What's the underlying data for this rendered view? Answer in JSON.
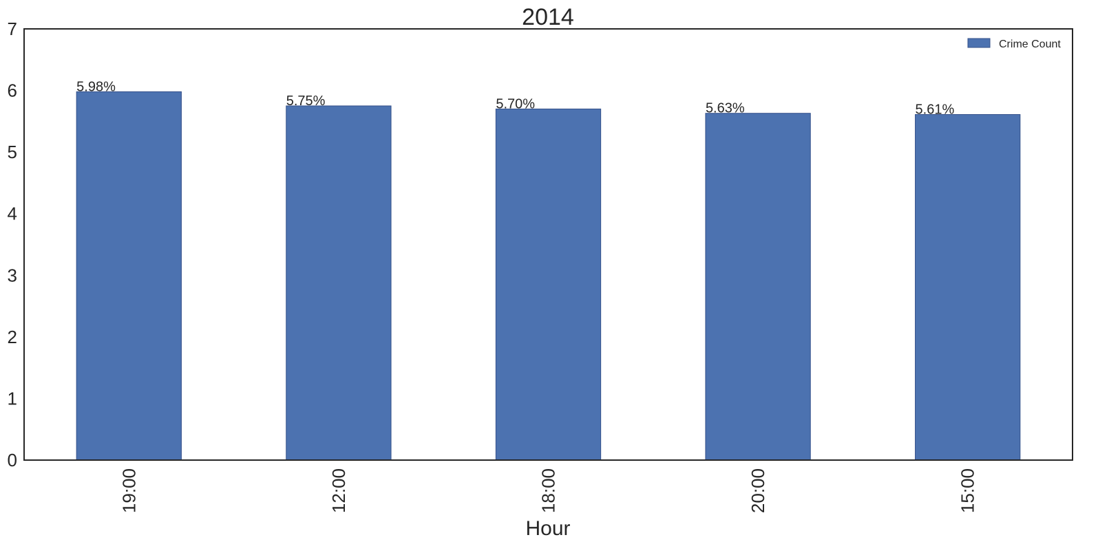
{
  "chart_data": {
    "type": "bar",
    "title": "2014",
    "xlabel": "Hour",
    "ylabel": "",
    "categories": [
      "19:00",
      "12:00",
      "18:00",
      "20:00",
      "15:00"
    ],
    "series": [
      {
        "name": "Crime Count",
        "values": [
          5.98,
          5.75,
          5.7,
          5.63,
          5.61
        ],
        "labels": [
          "5.98%",
          "5.75%",
          "5.70%",
          "5.63%",
          "5.61%"
        ]
      }
    ],
    "ylim": [
      0,
      7
    ],
    "yticks": [
      "0",
      "1",
      "2",
      "3",
      "4",
      "5",
      "6",
      "7"
    ],
    "grid": false,
    "legend_position": "top-right",
    "colors": {
      "bar": "#4c72b0",
      "bar_edge": "#34508a",
      "axis": "#262626",
      "text": "#262626"
    }
  }
}
